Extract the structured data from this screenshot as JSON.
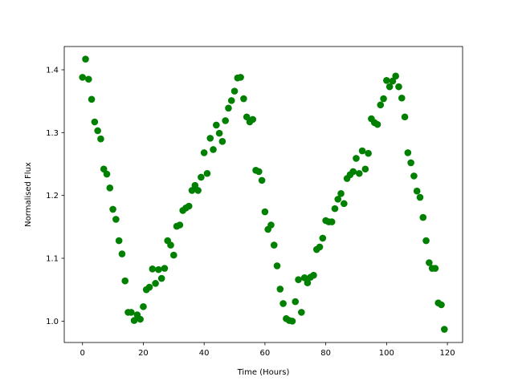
{
  "chart_data": {
    "type": "scatter",
    "x_label": "Time (Hours)",
    "y_label": "Normalised Flux",
    "series": [
      {
        "color": "#008000",
        "x": [
          0,
          1,
          2,
          3,
          4,
          5,
          6,
          7,
          8,
          9,
          10,
          11,
          12,
          13,
          14,
          15,
          16,
          17,
          18,
          19,
          20,
          21,
          22,
          23,
          24,
          25,
          26,
          27,
          28,
          29,
          30,
          31,
          32,
          33,
          34,
          35,
          36,
          37,
          38,
          39,
          40,
          41,
          42,
          43,
          44,
          45,
          46,
          47,
          48,
          49,
          50,
          51,
          52,
          53,
          54,
          55,
          56,
          57,
          58,
          59,
          60,
          61,
          62,
          63,
          64,
          65,
          66,
          67,
          68,
          69,
          70,
          71,
          72,
          73,
          74,
          75,
          76,
          77,
          78,
          79,
          80,
          81,
          82,
          83,
          84,
          85,
          86,
          87,
          88,
          89,
          90,
          91,
          92,
          93,
          94,
          95,
          96,
          97,
          98,
          99,
          100,
          101,
          102,
          103,
          104,
          105,
          106,
          107,
          108,
          109,
          110,
          111,
          112,
          113,
          114,
          115,
          116,
          117,
          118,
          119
        ],
        "values": [
          1.388,
          1.417,
          1.385,
          1.353,
          1.317,
          1.303,
          1.29,
          1.242,
          1.234,
          1.212,
          1.178,
          1.162,
          1.128,
          1.107,
          1.064,
          1.014,
          1.014,
          1.001,
          1.01,
          1.003,
          1.023,
          1.05,
          1.054,
          1.083,
          1.06,
          1.082,
          1.068,
          1.084,
          1.128,
          1.121,
          1.105,
          1.151,
          1.153,
          1.176,
          1.18,
          1.183,
          1.208,
          1.216,
          1.208,
          1.229,
          1.268,
          1.235,
          1.291,
          1.273,
          1.312,
          1.299,
          1.286,
          1.319,
          1.339,
          1.351,
          1.366,
          1.387,
          1.388,
          1.354,
          1.325,
          1.317,
          1.321,
          1.24,
          1.238,
          1.224,
          1.174,
          1.146,
          1.153,
          1.121,
          1.088,
          1.051,
          1.028,
          1.004,
          1.001,
          1.0,
          1.031,
          1.066,
          1.014,
          1.069,
          1.061,
          1.07,
          1.073,
          1.114,
          1.118,
          1.132,
          1.16,
          1.158,
          1.158,
          1.179,
          1.194,
          1.203,
          1.187,
          1.227,
          1.233,
          1.238,
          1.259,
          1.235,
          1.271,
          1.242,
          1.267,
          1.322,
          1.316,
          1.313,
          1.344,
          1.354,
          1.383,
          1.373,
          1.382,
          1.39,
          1.373,
          1.355,
          1.325,
          1.268,
          1.252,
          1.231,
          1.207,
          1.197,
          1.165,
          1.128,
          1.093,
          1.084,
          1.084,
          1.029,
          1.026,
          0.987
        ]
      }
    ],
    "xlim": [
      -6,
      125
    ],
    "ylim": [
      0.966,
      1.437
    ],
    "xticks": [
      0,
      20,
      40,
      60,
      80,
      100,
      120
    ],
    "yticks": [
      {
        "value": 1,
        "label": "1.0"
      },
      1.1,
      1.2,
      1.3,
      1.4
    ]
  }
}
